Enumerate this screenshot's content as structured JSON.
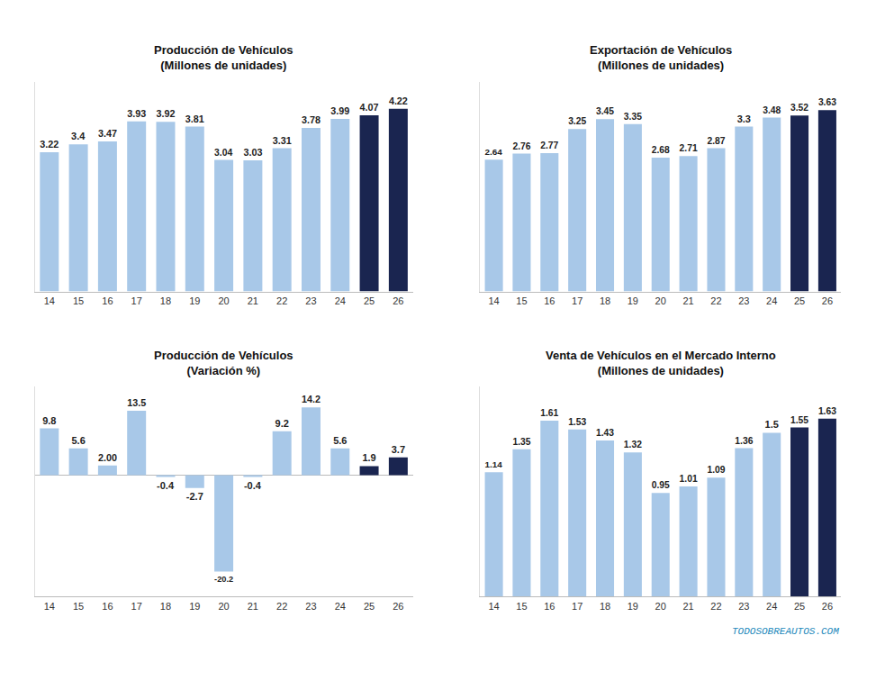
{
  "chart_data": [
    {
      "type": "bar",
      "title": "Producción de Vehículos\n(Millones de unidades)",
      "categories": [
        "14",
        "15",
        "16",
        "17",
        "18",
        "19",
        "20",
        "21",
        "22",
        "23",
        "24",
        "25",
        "26"
      ],
      "values": [
        3.22,
        3.4,
        3.47,
        3.93,
        3.92,
        3.81,
        3.04,
        3.03,
        3.31,
        3.78,
        3.99,
        4.07,
        4.22
      ],
      "colors": [
        "#a8c8e8",
        "#a8c8e8",
        "#a8c8e8",
        "#a8c8e8",
        "#a8c8e8",
        "#a8c8e8",
        "#a8c8e8",
        "#a8c8e8",
        "#a8c8e8",
        "#a8c8e8",
        "#a8c8e8",
        "#1a2550",
        "#1a2550"
      ],
      "ylim": [
        0,
        4.85
      ],
      "grid": false,
      "data_labels": true,
      "tick_labels": "x"
    },
    {
      "type": "bar",
      "title": "Exportación de Vehículos\n(Millones de unidades)",
      "categories": [
        "14",
        "15",
        "16",
        "17",
        "18",
        "19",
        "20",
        "21",
        "22",
        "23",
        "24",
        "25",
        "26"
      ],
      "values": [
        2.64,
        2.76,
        2.77,
        3.25,
        3.45,
        3.35,
        2.68,
        2.71,
        2.87,
        3.3,
        3.48,
        3.52,
        3.63
      ],
      "colors": [
        "#a8c8e8",
        "#a8c8e8",
        "#a8c8e8",
        "#a8c8e8",
        "#a8c8e8",
        "#a8c8e8",
        "#a8c8e8",
        "#a8c8e8",
        "#a8c8e8",
        "#a8c8e8",
        "#a8c8e8",
        "#1a2550",
        "#1a2550"
      ],
      "ylim": [
        0,
        4.2
      ],
      "grid": false,
      "data_labels": true,
      "tick_labels": "x"
    },
    {
      "type": "bar",
      "title": "Producción de Vehículos\n(Variación %)",
      "categories": [
        "14",
        "15",
        "16",
        "17",
        "18",
        "19",
        "20",
        "21",
        "22",
        "23",
        "24",
        "25",
        "26"
      ],
      "values": [
        9.8,
        5.6,
        2.0,
        13.5,
        -0.4,
        -2.7,
        -20.2,
        -0.4,
        9.2,
        14.2,
        5.6,
        1.9,
        3.7
      ],
      "value_labels": [
        "9.8",
        "5.6",
        "2.00",
        "13.5",
        "-0.4",
        "-2.7",
        "-20.2",
        "-0.4",
        "9.2",
        "14.2",
        "5.6",
        "1.9",
        "3.7"
      ],
      "colors": [
        "#a8c8e8",
        "#a8c8e8",
        "#a8c8e8",
        "#a8c8e8",
        "#a8c8e8",
        "#a8c8e8",
        "#a8c8e8",
        "#a8c8e8",
        "#a8c8e8",
        "#a8c8e8",
        "#a8c8e8",
        "#1a2550",
        "#1a2550"
      ],
      "ylim": [
        -25.5,
        18.5
      ],
      "grid": false,
      "data_labels": true,
      "tick_labels": "x"
    },
    {
      "type": "bar",
      "title": "Venta de Vehículos en el Mercado Interno\n(Millones de unidades)",
      "categories": [
        "14",
        "15",
        "16",
        "17",
        "18",
        "19",
        "20",
        "21",
        "22",
        "23",
        "24",
        "25",
        "26"
      ],
      "values": [
        1.14,
        1.35,
        1.61,
        1.53,
        1.43,
        1.32,
        0.95,
        1.01,
        1.09,
        1.36,
        1.5,
        1.55,
        1.63
      ],
      "colors": [
        "#a8c8e8",
        "#a8c8e8",
        "#a8c8e8",
        "#a8c8e8",
        "#a8c8e8",
        "#a8c8e8",
        "#a8c8e8",
        "#a8c8e8",
        "#a8c8e8",
        "#a8c8e8",
        "#a8c8e8",
        "#1a2550",
        "#1a2550"
      ],
      "ylim": [
        0,
        1.92
      ],
      "grid": false,
      "data_labels": true,
      "tick_labels": "x",
      "annotations": [
        "TODOSOBREAUTOS.COM"
      ]
    }
  ]
}
